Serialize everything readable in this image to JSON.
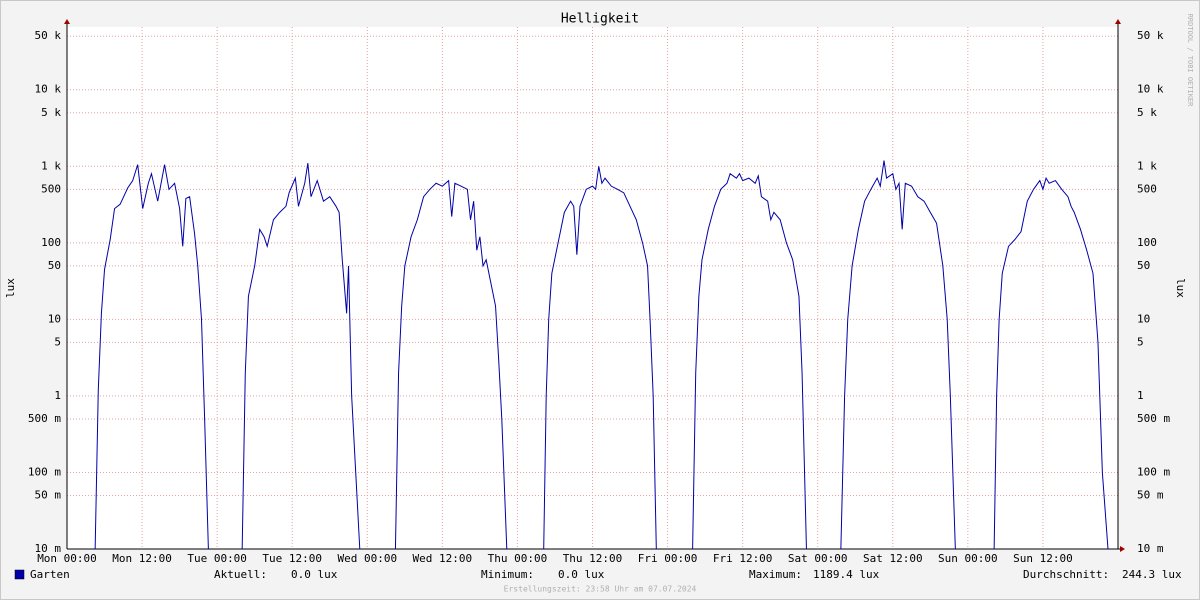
{
  "chart_data": {
    "type": "line",
    "title": "Helligkeit",
    "ylabel": "lux",
    "watermark": "RRDTOOL / TOBI OETIKER",
    "footer": "Erstellungszeit: 23:58 Uhr am 07.07.2024",
    "log_y": true,
    "grid": true,
    "xlim": [
      0,
      168
    ],
    "ylim": [
      0.01,
      66000
    ],
    "xticks": [
      {
        "value": 0,
        "label": "Mon 00:00"
      },
      {
        "value": 12,
        "label": "Mon 12:00"
      },
      {
        "value": 24,
        "label": "Tue 00:00"
      },
      {
        "value": 36,
        "label": "Tue 12:00"
      },
      {
        "value": 48,
        "label": "Wed 00:00"
      },
      {
        "value": 60,
        "label": "Wed 12:00"
      },
      {
        "value": 72,
        "label": "Thu 00:00"
      },
      {
        "value": 84,
        "label": "Thu 12:00"
      },
      {
        "value": 96,
        "label": "Fri 00:00"
      },
      {
        "value": 108,
        "label": "Fri 12:00"
      },
      {
        "value": 120,
        "label": "Sat 00:00"
      },
      {
        "value": 132,
        "label": "Sat 12:00"
      },
      {
        "value": 144,
        "label": "Sun 00:00"
      },
      {
        "value": 156,
        "label": "Sun 12:00"
      }
    ],
    "yticks": [
      {
        "value": 50000,
        "label": "50 k"
      },
      {
        "value": 10000,
        "label": "10 k"
      },
      {
        "value": 5000,
        "label": "5 k"
      },
      {
        "value": 1000,
        "label": "1 k"
      },
      500,
      100,
      50,
      10,
      5,
      1,
      {
        "value": 0.5,
        "label": "500 m"
      },
      {
        "value": 0.1,
        "label": "100 m"
      },
      {
        "value": 0.05,
        "label": "50 m"
      },
      {
        "value": 0.01,
        "label": "10 m"
      }
    ],
    "x": [
      0,
      4.5,
      5,
      5.5,
      6,
      6.9,
      7.6,
      8.5,
      9.7,
      10.5,
      11.3,
      12.1,
      13,
      13.5,
      14.5,
      15.6,
      16.3,
      17.2,
      18,
      18.5,
      19,
      19.6,
      20.4,
      20.9,
      21.5,
      22,
      22.6,
      23,
      28,
      28.5,
      29,
      30,
      30.8,
      31.5,
      32,
      33,
      34,
      35,
      35.5,
      36.5,
      37,
      38,
      38.5,
      39,
      40,
      41,
      42,
      43,
      43.5,
      44,
      44.7,
      45,
      45.5,
      46.8,
      47.5,
      52.5,
      53,
      53.5,
      54,
      55,
      56,
      57,
      58,
      59,
      60,
      61,
      61.5,
      62,
      63,
      64,
      64.5,
      65,
      65.5,
      66,
      66.5,
      67,
      68.5,
      69,
      69.5,
      70.3,
      71,
      76.2,
      76.6,
      77,
      77.5,
      78.5,
      79.5,
      80.5,
      81,
      81.5,
      82,
      83,
      84,
      84.5,
      85,
      85.5,
      86,
      87,
      88,
      89,
      90,
      91,
      92,
      92.8,
      93.2,
      93.7,
      94.2,
      95,
      100,
      100.5,
      101,
      101.5,
      102.5,
      103.5,
      104.5,
      105.5,
      106,
      107,
      107.5,
      108,
      109,
      110,
      110.5,
      111,
      112,
      112.5,
      113,
      114,
      115,
      116,
      117,
      117.5,
      118.2,
      119,
      123.7,
      124.3,
      124.8,
      125.5,
      126.5,
      127.5,
      128.5,
      129.5,
      130,
      130.6,
      131,
      132,
      132.5,
      133,
      133.5,
      134,
      135,
      136,
      137,
      138,
      139,
      140,
      140.7,
      141.2,
      142,
      143,
      148.2,
      148.6,
      149,
      149.5,
      150.5,
      151.5,
      152.5,
      153.5,
      154.5,
      155.5,
      156,
      156.5,
      157,
      158,
      159,
      160,
      160.5,
      161,
      162,
      163,
      164,
      164.8,
      165.5,
      166.4,
      168
    ],
    "series": [
      {
        "name": "Garten",
        "color": "#0000aa",
        "values": [
          null,
          0.01,
          1.2,
          12,
          45,
          110,
          280,
          320,
          520,
          650,
          1050,
          280,
          600,
          800,
          350,
          1050,
          500,
          600,
          280,
          90,
          380,
          400,
          130,
          50,
          10,
          0.5,
          0.01,
          null,
          0.01,
          2,
          20,
          50,
          150,
          120,
          90,
          200,
          250,
          300,
          450,
          700,
          300,
          600,
          1100,
          400,
          650,
          350,
          400,
          300,
          250,
          60,
          12,
          50,
          1,
          0.01,
          null,
          0.01,
          2,
          15,
          50,
          120,
          200,
          400,
          500,
          600,
          550,
          650,
          220,
          600,
          550,
          500,
          200,
          350,
          80,
          120,
          50,
          60,
          15,
          3,
          0.5,
          0.01,
          null,
          0.01,
          1,
          10,
          40,
          100,
          250,
          350,
          300,
          70,
          300,
          500,
          550,
          500,
          1000,
          600,
          700,
          550,
          500,
          450,
          300,
          200,
          100,
          50,
          10,
          1,
          0.01,
          null,
          0.01,
          2,
          20,
          60,
          150,
          300,
          500,
          600,
          800,
          700,
          800,
          650,
          700,
          600,
          750,
          400,
          350,
          200,
          250,
          200,
          100,
          60,
          20,
          2,
          0.01,
          null,
          0.01,
          1,
          10,
          50,
          150,
          350,
          500,
          700,
          550,
          1189.4,
          700,
          800,
          500,
          600,
          150,
          600,
          550,
          400,
          350,
          250,
          180,
          50,
          10,
          1,
          0.01,
          null,
          0.01,
          1,
          10,
          40,
          90,
          110,
          140,
          350,
          500,
          650,
          500,
          700,
          600,
          650,
          500,
          400,
          300,
          250,
          150,
          80,
          40,
          5,
          0.1,
          0.01,
          null
        ]
      }
    ],
    "stats": [
      {
        "label": "Aktuell:",
        "value": "0.0 lux"
      },
      {
        "label": "Minimum:",
        "value": "0.0 lux"
      },
      {
        "label": "Maximum:",
        "value": "1189.4 lux"
      },
      {
        "label": "Durchschnitt:",
        "value": "244.3 lux"
      }
    ]
  }
}
